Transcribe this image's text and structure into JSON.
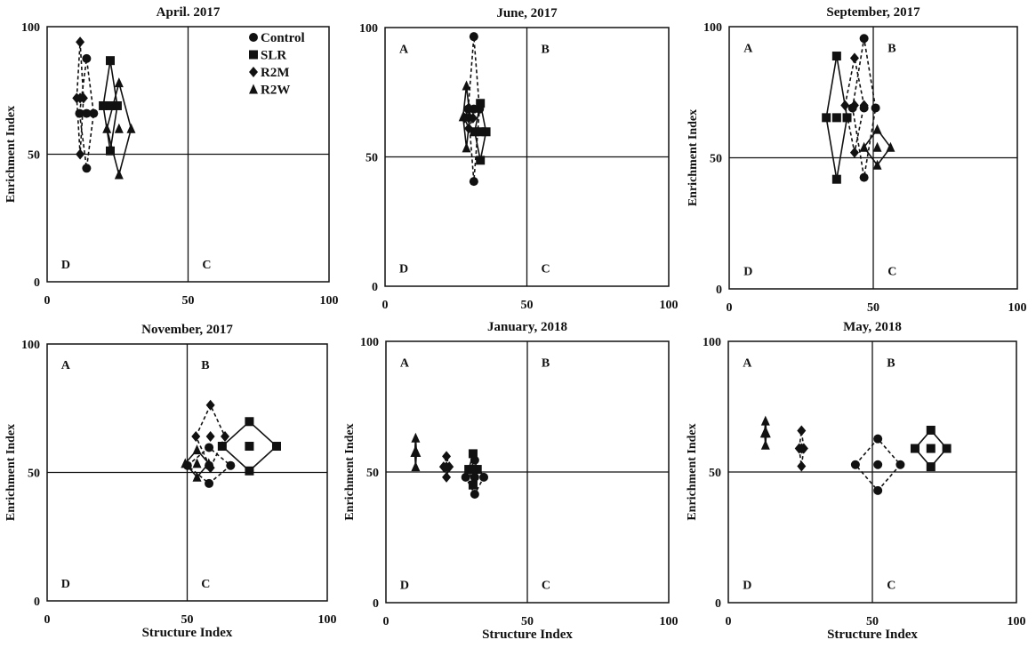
{
  "chart_data": [
    {
      "type": "scatter",
      "title": "April. 2017",
      "xlabel": "",
      "ylabel": "Enrichment Index",
      "xlim": [
        0,
        100
      ],
      "ylim": [
        0,
        100
      ],
      "xticks": [
        "0",
        "50",
        "100"
      ],
      "yticks": [
        "0",
        "50",
        "100"
      ],
      "quadrants": {
        "A": "",
        "B": "",
        "C": "C",
        "D": "D"
      },
      "legend": {
        "placement": "top-right",
        "entries": [
          "Control",
          "SLR",
          "R2M",
          "R2W"
        ]
      },
      "series": [
        {
          "name": "Control",
          "x": 14,
          "y": 66,
          "x_err": 2.5,
          "y_err": 21.5
        },
        {
          "name": "SLR",
          "x": 22.4,
          "y": 69,
          "x_err": 2.5,
          "y_err": 17.7
        },
        {
          "name": "R2M",
          "x": 11.7,
          "y": 72,
          "x_err": 1.2,
          "y_err": 22
        },
        {
          "name": "R2W",
          "x": 25.5,
          "y": 60,
          "x_err": 4.3,
          "y_err": 18
        }
      ]
    },
    {
      "type": "scatter",
      "title": "June, 2017",
      "xlabel": "",
      "ylabel": "",
      "xlim": [
        0,
        100
      ],
      "ylim": [
        0,
        100
      ],
      "xticks": [
        "0",
        "50",
        "100"
      ],
      "yticks": [
        "0",
        "50",
        "100"
      ],
      "quadrants": {
        "A": "A",
        "B": "B",
        "C": "C",
        "D": "D"
      },
      "series": [
        {
          "name": "Control",
          "x": 31.3,
          "y": 68.5,
          "x_err": 2,
          "y_err": 28
        },
        {
          "name": "SLR",
          "x": 33.6,
          "y": 59.7,
          "x_err": 2,
          "y_err": 11
        },
        {
          "name": "R2M",
          "x": 29.5,
          "y": 65,
          "x_err": 1.5,
          "y_err": 4
        },
        {
          "name": "R2W",
          "x": 28.7,
          "y": 65.5,
          "x_err": 1.2,
          "y_err": 12
        }
      ]
    },
    {
      "type": "scatter",
      "title": "September, 2017",
      "xlabel": "",
      "ylabel": "Enrichment Index",
      "xlim": [
        0,
        100
      ],
      "ylim": [
        0,
        100
      ],
      "xticks": [
        "0",
        "50",
        "100"
      ],
      "yticks": [
        "0",
        "50",
        "100"
      ],
      "quadrants": {
        "A": "A",
        "B": "B",
        "C": "C",
        "D": "D"
      },
      "series": [
        {
          "name": "Control",
          "x": 46.8,
          "y": 69,
          "x_err": 4,
          "y_err": 26.5
        },
        {
          "name": "SLR",
          "x": 37.3,
          "y": 65.3,
          "x_err": 3.6,
          "y_err": 23.5
        },
        {
          "name": "R2M",
          "x": 43.5,
          "y": 70,
          "x_err": 3.3,
          "y_err": 18
        },
        {
          "name": "R2W",
          "x": 51.4,
          "y": 54,
          "x_err": 4.6,
          "y_err": 6.8
        }
      ]
    },
    {
      "type": "scatter",
      "title": "November, 2017",
      "xlabel": "Structure Index",
      "ylabel": "Enrichment Index",
      "xlim": [
        0,
        100
      ],
      "ylim": [
        0,
        100
      ],
      "xticks": [
        "0",
        "50",
        "100"
      ],
      "yticks": [
        "0",
        "50",
        "100"
      ],
      "quadrants": {
        "A": "A",
        "B": "B",
        "C": "C",
        "D": "D"
      },
      "series": [
        {
          "name": "Control",
          "x": 57.8,
          "y": 52.7,
          "x_err": 7.7,
          "y_err": 7
        },
        {
          "name": "SLR",
          "x": 72.2,
          "y": 60.2,
          "x_err": 9.7,
          "y_err": 9.6
        },
        {
          "name": "R2M",
          "x": 58.3,
          "y": 64,
          "x_err": 5.2,
          "y_err": 12.2
        },
        {
          "name": "R2W",
          "x": 53.5,
          "y": 53.5,
          "x_err": 4.2,
          "y_err": 5.3
        }
      ]
    },
    {
      "type": "scatter",
      "title": "January, 2018",
      "xlabel": "Structure Index",
      "ylabel": "Enrichment Index",
      "xlim": [
        0,
        100
      ],
      "ylim": [
        0,
        100
      ],
      "xticks": [
        "0",
        "50",
        "100"
      ],
      "yticks": [
        "0",
        "50",
        "100"
      ],
      "quadrants": {
        "A": "A",
        "B": "B",
        "C": "C",
        "D": "D"
      },
      "series": [
        {
          "name": "Control",
          "x": 31.4,
          "y": 48,
          "x_err": 3.2,
          "y_err": 6.5
        },
        {
          "name": "SLR",
          "x": 30.8,
          "y": 51,
          "x_err": 1.5,
          "y_err": 6
        },
        {
          "name": "R2M",
          "x": 21.4,
          "y": 52,
          "x_err": 1,
          "y_err": 4
        },
        {
          "name": "R2W",
          "x": 10.5,
          "y": 57.5,
          "x_err": 0.3,
          "y_err": 5.5
        }
      ]
    },
    {
      "type": "scatter",
      "title": "May, 2018",
      "xlabel": "Structure Index",
      "ylabel": "Enrichment Index",
      "xlim": [
        0,
        100
      ],
      "ylim": [
        0,
        100
      ],
      "xticks": [
        "0",
        "50",
        "100"
      ],
      "yticks": [
        "0",
        "50",
        "100"
      ],
      "quadrants": {
        "A": "A",
        "B": "B",
        "C": "C",
        "D": "D"
      },
      "series": [
        {
          "name": "Control",
          "x": 51.9,
          "y": 52.8,
          "x_err": 7.8,
          "y_err": 9.9
        },
        {
          "name": "SLR",
          "x": 70.3,
          "y": 59,
          "x_err": 5.5,
          "y_err": 7
        },
        {
          "name": "R2M",
          "x": 25.4,
          "y": 59,
          "x_err": 0.8,
          "y_err": 6.8
        },
        {
          "name": "R2W",
          "x": 12.9,
          "y": 64.9,
          "x_err": 0.3,
          "y_err": 4.6
        }
      ]
    }
  ],
  "series_style": {
    "Control": {
      "marker": "circle",
      "line": "dashed"
    },
    "SLR": {
      "marker": "square",
      "line": "solid"
    },
    "R2M": {
      "marker": "diamond",
      "line": "dashed"
    },
    "R2W": {
      "marker": "triangle",
      "line": "solid"
    }
  },
  "colors": {
    "ink": "#111111",
    "background": "#ffffff"
  }
}
